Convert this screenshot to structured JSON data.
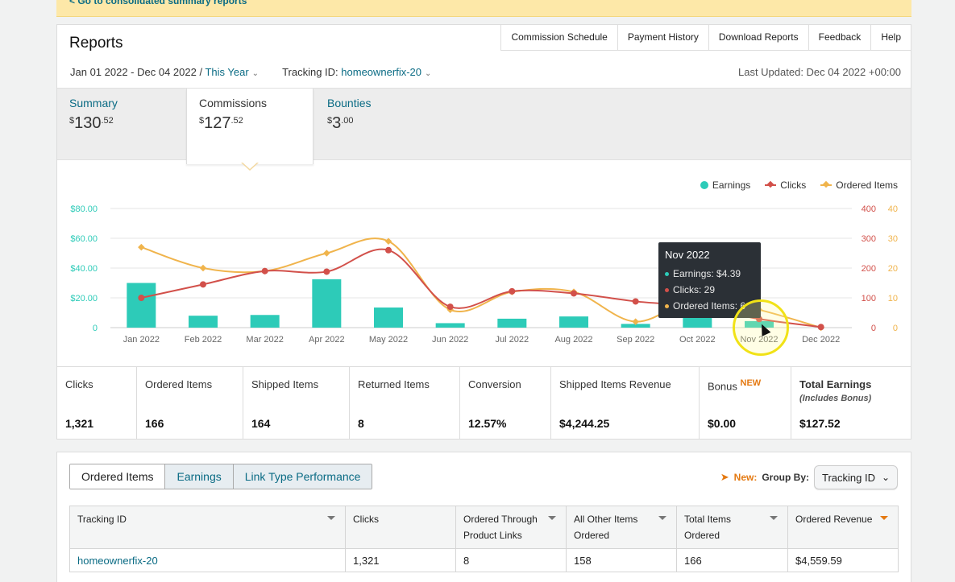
{
  "banner": {
    "link": "< Go to consolidated summary reports"
  },
  "header": {
    "title": "Reports",
    "links": [
      "Commission Schedule",
      "Payment History",
      "Download Reports",
      "Feedback",
      "Help"
    ],
    "date_range": "Jan 01 2022 - Dec 04 2022 /",
    "period": "This Year",
    "tracking_label": "Tracking ID:",
    "tracking_value": "homeownerfix-20",
    "last_updated": "Last Updated: Dec 04 2022 +00:00"
  },
  "summary_tabs": [
    {
      "label": "Summary",
      "currency": "$",
      "whole": "130",
      "cents": ".52"
    },
    {
      "label": "Commissions",
      "currency": "$",
      "whole": "127",
      "cents": ".52"
    },
    {
      "label": "Bounties",
      "currency": "$",
      "whole": "3",
      "cents": ".00"
    }
  ],
  "legend": [
    "Earnings",
    "Clicks",
    "Ordered Items"
  ],
  "colors": {
    "earnings": "#2dcbb8",
    "clicks": "#d2504a",
    "ordered": "#f0b44c",
    "link": "#0a6b84",
    "accent": "#e47911"
  },
  "chart_data": {
    "type": "bar",
    "categories": [
      "Jan 2022",
      "Feb 2022",
      "Mar 2022",
      "Apr 2022",
      "May 2022",
      "Jun 2022",
      "Jul 2022",
      "Aug 2022",
      "Sep 2022",
      "Oct 2022",
      "Nov 2022",
      "Dec 2022"
    ],
    "series": [
      {
        "name": "Earnings",
        "type": "bar",
        "axis": "left",
        "values": [
          30,
          8,
          8.5,
          32.5,
          13.5,
          3,
          6,
          7.5,
          2.5,
          7,
          4.39,
          0
        ]
      },
      {
        "name": "Clicks",
        "type": "line",
        "axis": "right1",
        "values": [
          100,
          145,
          190,
          188,
          260,
          70,
          122,
          115,
          88,
          70,
          29,
          2
        ]
      },
      {
        "name": "Ordered Items",
        "type": "line",
        "axis": "right2",
        "values": [
          27,
          20,
          19,
          25,
          29,
          6,
          12,
          12,
          2,
          10,
          6,
          0
        ]
      }
    ],
    "y_left": {
      "ticks": [
        "$80.00",
        "$60.00",
        "$40.00",
        "$20.00",
        "0"
      ],
      "range": [
        0,
        80
      ]
    },
    "y_right1": {
      "ticks": [
        "400",
        "300",
        "200",
        "100",
        "0"
      ],
      "range": [
        0,
        400
      ]
    },
    "y_right2": {
      "ticks": [
        "40",
        "30",
        "20",
        "10",
        "0"
      ],
      "range": [
        0,
        40
      ]
    },
    "legend_position": "top-right",
    "grid": true
  },
  "tooltip": {
    "title": "Nov 2022",
    "earnings": "Earnings: $4.39",
    "clicks": "Clicks: 29",
    "ordered": "Ordered Items: 6"
  },
  "metrics": [
    {
      "label": "Clicks",
      "value": "1,321"
    },
    {
      "label": "Ordered Items",
      "value": "166"
    },
    {
      "label": "Shipped Items",
      "value": "164"
    },
    {
      "label": "Returned Items",
      "value": "8"
    },
    {
      "label": "Conversion",
      "value": "12.57%"
    },
    {
      "label": "Shipped Items Revenue",
      "value": "$4,244.25"
    },
    {
      "label": "Bonus",
      "new": "NEW",
      "value": "$0.00"
    },
    {
      "label": "Total Earnings",
      "sub": "(Includes Bonus)",
      "value": "$127.52"
    }
  ],
  "table_section": {
    "tabs": [
      "Ordered Items",
      "Earnings",
      "Link Type Performance"
    ],
    "new_label": "New:",
    "group_by_label": "Group By:",
    "group_by_value": "Tracking ID",
    "columns": [
      "Tracking ID",
      "Clicks",
      "Ordered Through Product Links",
      "All Other Items Ordered",
      "Total Items Ordered",
      "Ordered Revenue"
    ],
    "rows": [
      [
        "homeownerfix-20",
        "1,321",
        "8",
        "158",
        "166",
        "$4,559.59"
      ]
    ]
  }
}
